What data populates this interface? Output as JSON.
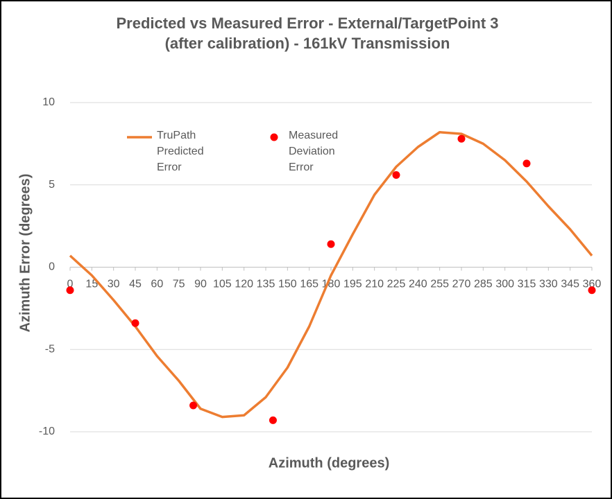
{
  "chart_data": {
    "type": "line",
    "title": [
      "Predicted vs Measured Error - External/TargetPoint 3",
      "(after calibration) - 161kV Transmission"
    ],
    "x_label": "Azimuth (degrees)",
    "y_label": "Azimuth Error (degrees)",
    "xlim": [
      0,
      360
    ],
    "xticks": [
      0,
      15,
      30,
      45,
      60,
      75,
      90,
      105,
      120,
      135,
      150,
      165,
      180,
      195,
      210,
      225,
      240,
      255,
      270,
      285,
      300,
      315,
      330,
      345,
      360
    ],
    "ylim": [
      -10,
      10
    ],
    "yticks": [
      -10,
      -5,
      0,
      5,
      10
    ],
    "grid": true,
    "series": [
      {
        "name": "TruPath Predicted Error",
        "style": "line",
        "color": "#ed7d31",
        "x": [
          0,
          15,
          30,
          45,
          60,
          75,
          90,
          105,
          120,
          135,
          150,
          165,
          180,
          195,
          210,
          225,
          240,
          255,
          270,
          285,
          300,
          315,
          330,
          345,
          360
        ],
        "values": [
          0.7,
          -0.5,
          -2.0,
          -3.6,
          -5.4,
          -6.9,
          -8.6,
          -9.1,
          -9.0,
          -7.9,
          -6.1,
          -3.6,
          -0.5,
          2.0,
          4.4,
          6.1,
          7.3,
          8.2,
          8.1,
          7.5,
          6.5,
          5.2,
          3.7,
          2.3,
          0.7
        ]
      },
      {
        "name": "Measured Deviation Error",
        "style": "markers",
        "color": "#ff0000",
        "x": [
          0,
          45,
          85,
          140,
          180,
          225,
          270,
          315,
          360
        ],
        "values": [
          -1.4,
          -3.4,
          -8.4,
          -9.3,
          1.4,
          5.6,
          7.8,
          6.3,
          -1.4
        ]
      }
    ]
  }
}
